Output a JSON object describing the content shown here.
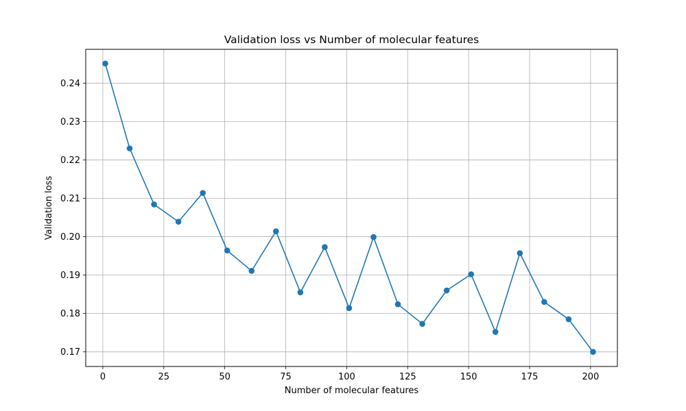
{
  "chart_data": {
    "type": "line",
    "title": "Validation loss vs Number of molecular features",
    "xlabel": "Number of molecular features",
    "ylabel": "Validation loss",
    "xlim": [
      -7,
      211
    ],
    "ylim": [
      0.1662,
      0.2488
    ],
    "xticks": [
      0,
      25,
      50,
      75,
      100,
      125,
      150,
      175,
      200
    ],
    "yticks": [
      0.17,
      0.18,
      0.19,
      0.2,
      0.21,
      0.22,
      0.23,
      0.24
    ],
    "ytick_labels": [
      "0.17",
      "0.18",
      "0.19",
      "0.20",
      "0.21",
      "0.22",
      "0.23",
      "0.24"
    ],
    "grid": true,
    "line_color": "#1f77b4",
    "series": [
      {
        "x": [
          1,
          11,
          21,
          31,
          41,
          51,
          61,
          71,
          81,
          91,
          101,
          111,
          121,
          131,
          141,
          151,
          161,
          171,
          181,
          191,
          201
        ],
        "values": [
          0.2451,
          0.223,
          0.2084,
          0.2039,
          0.2114,
          0.1964,
          0.1911,
          0.2014,
          0.1855,
          0.1973,
          0.1814,
          0.1999,
          0.1824,
          0.1773,
          0.186,
          0.1902,
          0.1752,
          0.1957,
          0.183,
          0.1785,
          0.17
        ]
      }
    ]
  }
}
